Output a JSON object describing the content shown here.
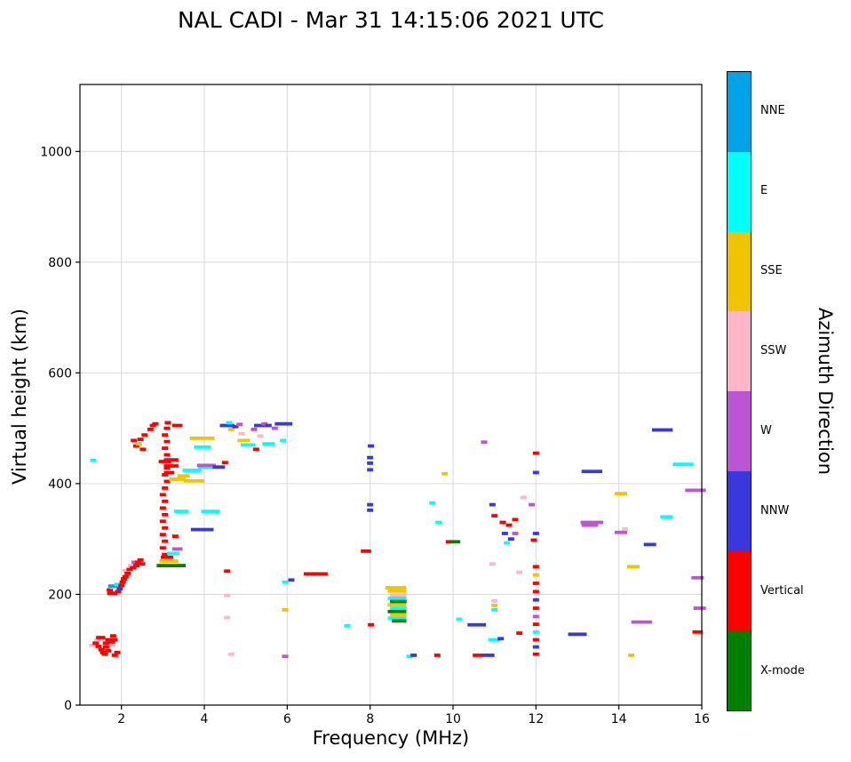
{
  "chart_data": {
    "type": "scatter",
    "title": "NAL CADI - Mar 31 14:15:06 2021 UTC",
    "xlabel": "Frequency (MHz)",
    "ylabel": "Virtual height (km)",
    "xlim": [
      1,
      16
    ],
    "ylim": [
      0,
      1121
    ],
    "xticks": [
      2,
      4,
      6,
      8,
      10,
      12,
      14,
      16
    ],
    "yticks": [
      0,
      200,
      400,
      600,
      800,
      1000
    ],
    "grid": true,
    "grid_color": "#d9d9d9",
    "marker": "horizontal-dash",
    "legend_title": "Azimuth Direction",
    "legend_position": "right-colorbar",
    "directions": [
      {
        "label": "NNE",
        "color": "#00A2E8"
      },
      {
        "label": "E",
        "color": "#00FFFF"
      },
      {
        "label": "SSE",
        "color": "#F0C400"
      },
      {
        "label": "SSW",
        "color": "#FFB6C8"
      },
      {
        "label": "W",
        "color": "#BA55D3"
      },
      {
        "label": "NNW",
        "color": "#3838DD"
      },
      {
        "label": "Vertical",
        "color": "#FF0000"
      },
      {
        "label": "X-mode",
        "color": "#008000"
      }
    ],
    "points_format": "[freq_MHz, virtual_height_km, direction_index, optional_dash_width_MHz]",
    "points": [
      [
        1.32,
        442,
        1
      ],
      [
        1.3,
        108,
        3
      ],
      [
        1.38,
        112,
        6
      ],
      [
        1.42,
        118,
        3
      ],
      [
        1.45,
        106,
        6
      ],
      [
        1.5,
        122,
        6,
        0.22
      ],
      [
        1.52,
        100,
        6
      ],
      [
        1.56,
        95,
        6
      ],
      [
        1.6,
        92,
        6
      ],
      [
        1.63,
        105,
        6
      ],
      [
        1.68,
        98,
        6
      ],
      [
        1.7,
        112,
        6,
        0.3
      ],
      [
        1.76,
        118,
        6,
        0.3
      ],
      [
        1.8,
        125,
        6
      ],
      [
        1.84,
        90,
        6
      ],
      [
        1.9,
        95,
        6
      ],
      [
        1.78,
        108,
        3
      ],
      [
        1.72,
        208,
        6
      ],
      [
        1.78,
        202,
        6,
        0.25
      ],
      [
        1.8,
        213,
        3
      ],
      [
        1.83,
        215,
        0,
        0.3
      ],
      [
        1.9,
        218,
        1
      ],
      [
        1.92,
        205,
        6
      ],
      [
        1.96,
        210,
        5
      ],
      [
        2.0,
        216,
        6
      ],
      [
        2.03,
        222,
        6
      ],
      [
        2.06,
        228,
        6
      ],
      [
        2.1,
        232,
        6
      ],
      [
        2.1,
        243,
        3
      ],
      [
        2.15,
        238,
        6
      ],
      [
        2.2,
        245,
        6
      ],
      [
        2.23,
        252,
        3
      ],
      [
        2.28,
        248,
        6
      ],
      [
        2.32,
        258,
        4
      ],
      [
        2.36,
        252,
        6
      ],
      [
        2.4,
        258,
        6
      ],
      [
        2.46,
        262,
        6
      ],
      [
        2.5,
        255,
        6
      ],
      [
        2.3,
        478,
        6
      ],
      [
        2.36,
        468,
        6
      ],
      [
        2.42,
        472,
        2
      ],
      [
        2.46,
        480,
        6
      ],
      [
        2.52,
        462,
        6
      ],
      [
        2.56,
        488,
        6
      ],
      [
        2.7,
        498,
        6
      ],
      [
        2.76,
        505,
        6
      ],
      [
        2.82,
        508,
        6
      ],
      [
        3.0,
        260,
        6
      ],
      [
        3.05,
        272,
        6
      ],
      [
        3.0,
        284,
        6
      ],
      [
        3.05,
        296,
        6
      ],
      [
        3.0,
        308,
        6
      ],
      [
        3.05,
        320,
        6
      ],
      [
        3.0,
        332,
        6
      ],
      [
        3.05,
        344,
        6
      ],
      [
        3.0,
        356,
        6
      ],
      [
        3.05,
        368,
        6
      ],
      [
        3.0,
        380,
        6
      ],
      [
        3.05,
        392,
        6
      ],
      [
        3.1,
        404,
        6
      ],
      [
        3.05,
        416,
        6
      ],
      [
        3.1,
        428,
        6
      ],
      [
        3.05,
        440,
        6,
        0.3
      ],
      [
        3.1,
        452,
        6
      ],
      [
        3.05,
        464,
        6
      ],
      [
        3.1,
        476,
        6
      ],
      [
        3.05,
        488,
        6
      ],
      [
        3.1,
        500,
        6
      ],
      [
        3.12,
        510,
        6
      ],
      [
        3.2,
        432,
        6,
        0.35
      ],
      [
        3.2,
        443,
        6,
        0.35
      ],
      [
        3.2,
        252,
        7,
        0.7
      ],
      [
        3.15,
        260,
        2,
        0.45
      ],
      [
        3.1,
        267,
        6,
        0.3
      ],
      [
        3.25,
        274,
        1,
        0.3
      ],
      [
        3.35,
        282,
        4,
        0.25
      ],
      [
        3.3,
        305,
        6
      ],
      [
        3.95,
        317,
        5,
        0.55
      ],
      [
        3.45,
        350,
        1,
        0.35
      ],
      [
        4.15,
        350,
        1,
        0.45
      ],
      [
        3.35,
        408,
        2,
        0.4
      ],
      [
        3.75,
        405,
        2,
        0.5
      ],
      [
        3.5,
        414,
        2,
        0.3
      ],
      [
        3.7,
        424,
        1,
        0.45
      ],
      [
        4.1,
        430,
        1,
        0.5
      ],
      [
        3.15,
        420,
        6,
        0.25
      ],
      [
        4.05,
        433,
        4,
        0.45
      ],
      [
        4.35,
        430,
        5,
        0.3
      ],
      [
        4.5,
        438,
        6
      ],
      [
        3.95,
        482,
        2,
        0.6
      ],
      [
        3.95,
        466,
        1,
        0.4
      ],
      [
        3.35,
        505,
        6,
        0.25
      ],
      [
        4.55,
        505,
        5,
        0.35
      ],
      [
        4.6,
        510,
        1
      ],
      [
        4.65,
        498,
        2
      ],
      [
        4.75,
        503,
        5
      ],
      [
        4.85,
        507,
        4
      ],
      [
        4.9,
        490,
        3
      ],
      [
        4.95,
        478,
        2,
        0.3
      ],
      [
        5.05,
        470,
        1,
        0.35
      ],
      [
        5.2,
        498,
        4
      ],
      [
        5.35,
        505,
        5,
        0.3
      ],
      [
        5.45,
        508,
        4
      ],
      [
        5.55,
        505,
        5
      ],
      [
        5.55,
        472,
        1,
        0.3
      ],
      [
        5.35,
        486,
        3
      ],
      [
        5.25,
        462,
        6
      ],
      [
        5.7,
        500,
        4
      ],
      [
        5.85,
        508,
        5,
        0.3
      ],
      [
        5.9,
        478,
        1
      ],
      [
        6.05,
        508,
        5
      ],
      [
        4.55,
        158,
        3
      ],
      [
        4.55,
        198,
        3
      ],
      [
        4.55,
        242,
        6
      ],
      [
        4.65,
        92,
        3
      ],
      [
        5.95,
        88,
        4
      ],
      [
        5.95,
        222,
        1
      ],
      [
        5.95,
        172,
        2
      ],
      [
        6.1,
        226,
        5
      ],
      [
        6.55,
        237,
        6,
        0.3
      ],
      [
        6.8,
        237,
        6,
        0.35
      ],
      [
        7.45,
        143,
        1
      ],
      [
        7.9,
        278,
        6,
        0.25
      ],
      [
        8.02,
        145,
        6
      ],
      [
        8.0,
        352,
        5
      ],
      [
        8.0,
        362,
        5
      ],
      [
        8.0,
        425,
        5
      ],
      [
        8.0,
        437,
        5
      ],
      [
        8.0,
        447,
        5
      ],
      [
        8.02,
        468,
        5
      ],
      [
        8.62,
        212,
        2,
        0.5
      ],
      [
        8.65,
        206,
        2,
        0.45
      ],
      [
        8.68,
        199,
        3,
        0.4
      ],
      [
        8.65,
        193,
        1,
        0.45
      ],
      [
        8.68,
        187,
        7,
        0.4
      ],
      [
        8.65,
        181,
        2,
        0.45
      ],
      [
        8.68,
        175,
        1,
        0.4
      ],
      [
        8.65,
        169,
        7,
        0.45
      ],
      [
        8.68,
        163,
        2,
        0.4
      ],
      [
        8.65,
        157,
        1,
        0.45
      ],
      [
        8.7,
        152,
        7,
        0.35
      ],
      [
        8.95,
        88,
        1
      ],
      [
        9.05,
        90,
        5
      ],
      [
        9.62,
        90,
        6
      ],
      [
        9.5,
        365,
        1
      ],
      [
        9.65,
        330,
        1
      ],
      [
        9.8,
        418,
        2
      ],
      [
        9.9,
        295,
        6
      ],
      [
        10.05,
        295,
        7,
        0.25
      ],
      [
        10.15,
        155,
        1
      ],
      [
        10.5,
        145,
        5,
        0.3
      ],
      [
        10.72,
        145,
        5
      ],
      [
        10.6,
        90,
        6,
        0.25
      ],
      [
        10.85,
        90,
        5,
        0.3
      ],
      [
        11.0,
        118,
        1,
        0.3
      ],
      [
        11.15,
        120,
        5
      ],
      [
        10.75,
        475,
        4
      ],
      [
        10.95,
        362,
        5
      ],
      [
        11.0,
        342,
        6
      ],
      [
        10.95,
        255,
        3
      ],
      [
        11.0,
        188,
        3
      ],
      [
        11.0,
        180,
        2
      ],
      [
        11.0,
        172,
        1
      ],
      [
        11.2,
        330,
        6
      ],
      [
        11.35,
        325,
        6
      ],
      [
        11.25,
        310,
        5
      ],
      [
        11.4,
        300,
        5
      ],
      [
        11.3,
        293,
        1
      ],
      [
        11.5,
        335,
        6
      ],
      [
        11.5,
        310,
        4
      ],
      [
        11.6,
        240,
        3
      ],
      [
        11.6,
        130,
        6
      ],
      [
        11.7,
        375,
        3
      ],
      [
        11.9,
        362,
        4
      ],
      [
        12.0,
        455,
        6
      ],
      [
        12.0,
        420,
        5
      ],
      [
        12.0,
        92,
        6
      ],
      [
        12.0,
        105,
        5
      ],
      [
        12.0,
        118,
        6
      ],
      [
        12.0,
        132,
        1
      ],
      [
        12.0,
        146,
        6
      ],
      [
        12.0,
        160,
        4
      ],
      [
        12.0,
        175,
        6
      ],
      [
        12.0,
        190,
        5
      ],
      [
        12.0,
        205,
        6
      ],
      [
        12.0,
        220,
        6
      ],
      [
        12.0,
        235,
        2
      ],
      [
        12.0,
        250,
        6
      ],
      [
        11.95,
        298,
        6
      ],
      [
        12.0,
        310,
        5
      ],
      [
        13.0,
        128,
        5,
        0.45
      ],
      [
        13.35,
        422,
        5,
        0.5
      ],
      [
        13.35,
        330,
        4,
        0.55
      ],
      [
        13.3,
        325,
        4,
        0.4
      ],
      [
        14.05,
        382,
        2,
        0.3
      ],
      [
        14.05,
        312,
        4,
        0.3
      ],
      [
        14.15,
        318,
        3
      ],
      [
        14.35,
        250,
        2,
        0.3
      ],
      [
        14.3,
        90,
        2
      ],
      [
        14.55,
        150,
        4,
        0.5
      ],
      [
        14.75,
        290,
        5,
        0.3
      ],
      [
        15.05,
        497,
        5,
        0.5
      ],
      [
        15.15,
        340,
        1,
        0.3
      ],
      [
        15.55,
        435,
        1,
        0.5
      ],
      [
        15.85,
        388,
        4,
        0.5
      ],
      [
        15.9,
        230,
        4,
        0.3
      ],
      [
        15.95,
        175,
        4,
        0.3
      ],
      [
        15.9,
        132,
        6,
        0.25
      ]
    ]
  }
}
